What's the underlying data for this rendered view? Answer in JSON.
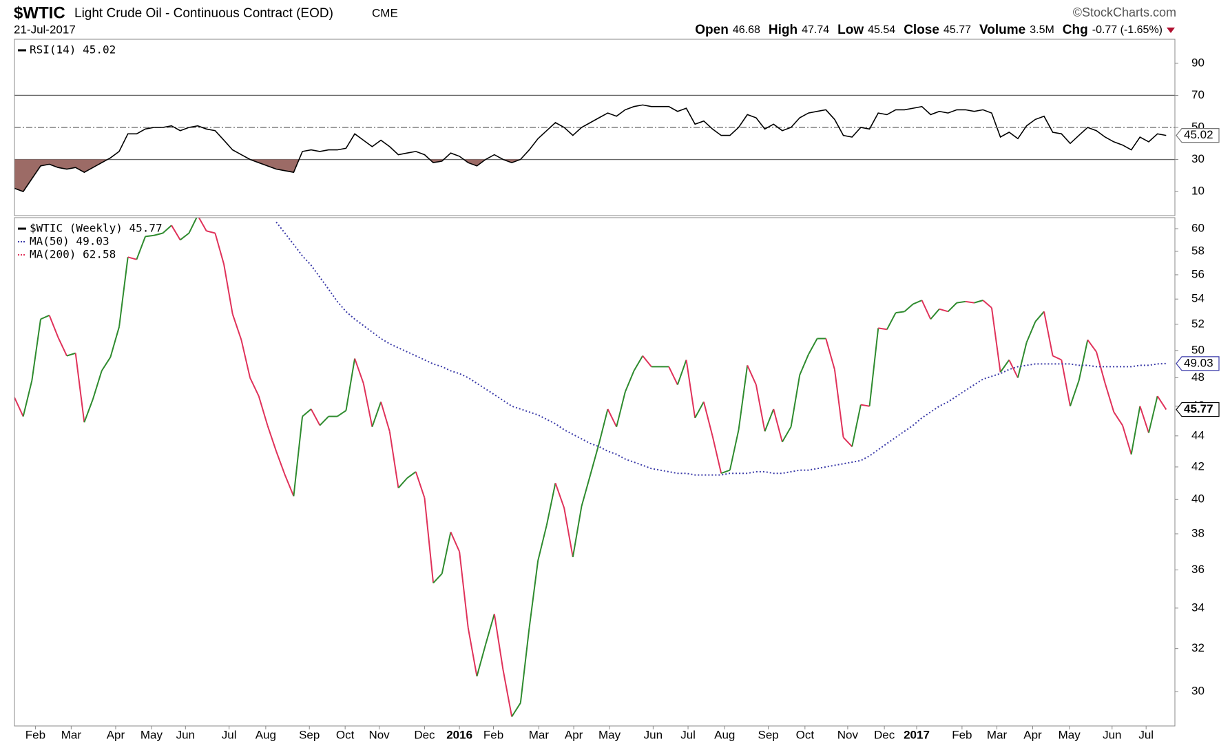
{
  "header": {
    "symbol": "$WTIC",
    "name": "Light Crude Oil - Continuous Contract (EOD)",
    "exchange": "CME",
    "date": "21-Jul-2017",
    "source": "©StockCharts.com",
    "quote": [
      {
        "label": "Open",
        "value": "46.68"
      },
      {
        "label": "High",
        "value": "47.74"
      },
      {
        "label": "Low",
        "value": "45.54"
      },
      {
        "label": "Close",
        "value": "45.77"
      },
      {
        "label": "Volume",
        "value": "3.5M"
      },
      {
        "label": "Chg",
        "value": "-0.77 (-1.65%)"
      }
    ]
  },
  "chart_data": [
    {
      "type": "line",
      "xlim": [
        0,
        133
      ],
      "ylim": [
        -5,
        105
      ],
      "yticks": [
        10,
        30,
        50,
        70,
        90
      ],
      "reference_lines": [
        {
          "value": 70,
          "style": "solid"
        },
        {
          "value": 50,
          "style": "dashdot"
        },
        {
          "value": 30,
          "style": "solid"
        }
      ],
      "shade_below": 30,
      "shade_color": "#9c6b66",
      "series": [
        {
          "name": "RSI(14) 45.02",
          "color": "#000000",
          "values": [
            12,
            10,
            18,
            26,
            27,
            25,
            24,
            25,
            22,
            25,
            28,
            31,
            35,
            46,
            46,
            49,
            50,
            50,
            51,
            48,
            50,
            51,
            49,
            48,
            42,
            36,
            33,
            30,
            28,
            26,
            24,
            23,
            22,
            35,
            36,
            35,
            36,
            36,
            37,
            46,
            42,
            38,
            42,
            38,
            33,
            34,
            35,
            33,
            28,
            29,
            34,
            32,
            28,
            26,
            30,
            33,
            30,
            28,
            30,
            36,
            43,
            48,
            53,
            50,
            45,
            50,
            53,
            56,
            59,
            57,
            61,
            63,
            64,
            63,
            63,
            63,
            60,
            62,
            52,
            54,
            49,
            45,
            45,
            50,
            58,
            56,
            49,
            52,
            48,
            50,
            56,
            59,
            60,
            61,
            55,
            45,
            44,
            50,
            49,
            59,
            58,
            61,
            61,
            62,
            63,
            58,
            60,
            59,
            61,
            61,
            60,
            61,
            59,
            44,
            47,
            43,
            51,
            55,
            57,
            47,
            46,
            40,
            45,
            50,
            48,
            44,
            41,
            39,
            36,
            44,
            41,
            46,
            45.02
          ]
        }
      ]
    },
    {
      "type": "line",
      "log": true,
      "xlim": [
        0,
        133
      ],
      "ylim": [
        28.5,
        61
      ],
      "yticks": [
        30,
        32,
        34,
        36,
        38,
        40,
        42,
        44,
        46,
        48,
        50,
        52,
        54,
        56,
        58,
        60
      ],
      "xticks": [
        {
          "value": 2.4,
          "label": "Feb"
        },
        {
          "value": 6.5,
          "label": "Mar"
        },
        {
          "value": 11.6,
          "label": "Apr"
        },
        {
          "value": 15.7,
          "label": "May"
        },
        {
          "value": 19.6,
          "label": "Jun"
        },
        {
          "value": 24.6,
          "label": "Jul"
        },
        {
          "value": 28.8,
          "label": "Aug"
        },
        {
          "value": 33.8,
          "label": "Sep"
        },
        {
          "value": 37.9,
          "label": "Oct"
        },
        {
          "value": 41.8,
          "label": "Nov"
        },
        {
          "value": 47,
          "label": "Dec"
        },
        {
          "value": 51,
          "label": "2016"
        },
        {
          "value": 54.9,
          "label": "Feb"
        },
        {
          "value": 60.1,
          "label": "Mar"
        },
        {
          "value": 64.1,
          "label": "Apr"
        },
        {
          "value": 68.2,
          "label": "May"
        },
        {
          "value": 73.2,
          "label": "Jun"
        },
        {
          "value": 77.2,
          "label": "Jul"
        },
        {
          "value": 81.4,
          "label": "Aug"
        },
        {
          "value": 86.4,
          "label": "Sep"
        },
        {
          "value": 90.6,
          "label": "Oct"
        },
        {
          "value": 95.5,
          "label": "Nov"
        },
        {
          "value": 99.7,
          "label": "Dec"
        },
        {
          "value": 103.4,
          "label": "2017"
        },
        {
          "value": 108.6,
          "label": "Feb"
        },
        {
          "value": 112.6,
          "label": "Mar"
        },
        {
          "value": 116.7,
          "label": "Apr"
        },
        {
          "value": 120.9,
          "label": "May"
        },
        {
          "value": 125.8,
          "label": "Jun"
        },
        {
          "value": 129.7,
          "label": "Jul"
        }
      ],
      "series": [
        {
          "name": "$WTIC (Weekly) 45.77",
          "color": "#000000",
          "color_up": "#2e8b2e",
          "color_down": "#e0325a",
          "values": [
            46.6,
            45.3,
            47.8,
            52.4,
            52.7,
            51.0,
            49.6,
            49.8,
            44.9,
            46.5,
            48.5,
            49.5,
            51.8,
            57.5,
            57.3,
            59.3,
            59.4,
            59.6,
            60.3,
            59.0,
            59.6,
            61.2,
            59.8,
            59.6,
            56.9,
            52.8,
            50.8,
            48.0,
            46.7,
            44.7,
            43.0,
            41.5,
            40.2,
            45.3,
            45.8,
            44.7,
            45.3,
            45.3,
            45.7,
            49.4,
            47.6,
            44.6,
            46.3,
            44.3,
            40.7,
            41.3,
            41.7,
            40.1,
            35.3,
            35.8,
            38.1,
            37.0,
            33.0,
            30.7,
            32.2,
            33.7,
            31.0,
            28.9,
            29.5,
            33.0,
            36.5,
            38.5,
            41.0,
            39.5,
            36.7,
            39.6,
            41.5,
            43.5,
            45.8,
            44.6,
            47.0,
            48.5,
            49.6,
            48.8,
            48.8,
            48.8,
            47.5,
            49.3,
            45.2,
            46.3,
            44.0,
            41.6,
            41.8,
            44.4,
            48.9,
            47.5,
            44.3,
            45.8,
            43.6,
            44.6,
            48.2,
            49.7,
            50.9,
            50.9,
            48.6,
            43.9,
            43.3,
            46.1,
            46.0,
            51.7,
            51.6,
            52.9,
            53.0,
            53.6,
            53.9,
            52.4,
            53.2,
            53.0,
            53.7,
            53.8,
            53.7,
            53.9,
            53.3,
            48.4,
            49.3,
            48.0,
            50.6,
            52.2,
            53.0,
            49.6,
            49.3,
            46.0,
            47.8,
            50.8,
            49.9,
            47.6,
            45.6,
            44.7,
            42.8,
            46.0,
            44.2,
            46.7,
            45.77
          ]
        },
        {
          "name": "MA(50) 49.03",
          "color": "#3a3aa8",
          "dotted": true,
          "values": [
            null,
            null,
            null,
            null,
            null,
            null,
            null,
            null,
            null,
            null,
            null,
            null,
            null,
            null,
            null,
            null,
            null,
            null,
            null,
            null,
            null,
            null,
            null,
            null,
            null,
            null,
            null,
            null,
            null,
            null,
            60.6,
            59.6,
            58.6,
            57.6,
            56.8,
            55.8,
            54.8,
            53.8,
            53.0,
            52.4,
            51.9,
            51.4,
            50.9,
            50.5,
            50.2,
            49.9,
            49.6,
            49.3,
            49.0,
            48.8,
            48.5,
            48.3,
            48.0,
            47.6,
            47.2,
            46.8,
            46.4,
            46.0,
            45.8,
            45.6,
            45.4,
            45.1,
            44.8,
            44.4,
            44.1,
            43.8,
            43.5,
            43.3,
            43.0,
            42.8,
            42.5,
            42.3,
            42.1,
            41.9,
            41.8,
            41.7,
            41.6,
            41.6,
            41.5,
            41.5,
            41.5,
            41.5,
            41.6,
            41.6,
            41.6,
            41.7,
            41.7,
            41.6,
            41.6,
            41.7,
            41.8,
            41.8,
            41.9,
            42.0,
            42.1,
            42.2,
            42.3,
            42.4,
            42.7,
            43.1,
            43.5,
            43.9,
            44.3,
            44.7,
            45.2,
            45.6,
            46.0,
            46.3,
            46.7,
            47.1,
            47.5,
            47.9,
            48.1,
            48.3,
            48.6,
            48.8,
            48.9,
            49.0,
            49.0,
            49.0,
            49.0,
            49.0,
            48.9,
            48.9,
            48.8,
            48.8,
            48.8,
            48.8,
            48.8,
            48.9,
            48.9,
            49.0,
            49.03
          ]
        },
        {
          "name": "MA(200) 62.58",
          "color": "#e0325a",
          "dotted": true
        }
      ]
    }
  ]
}
